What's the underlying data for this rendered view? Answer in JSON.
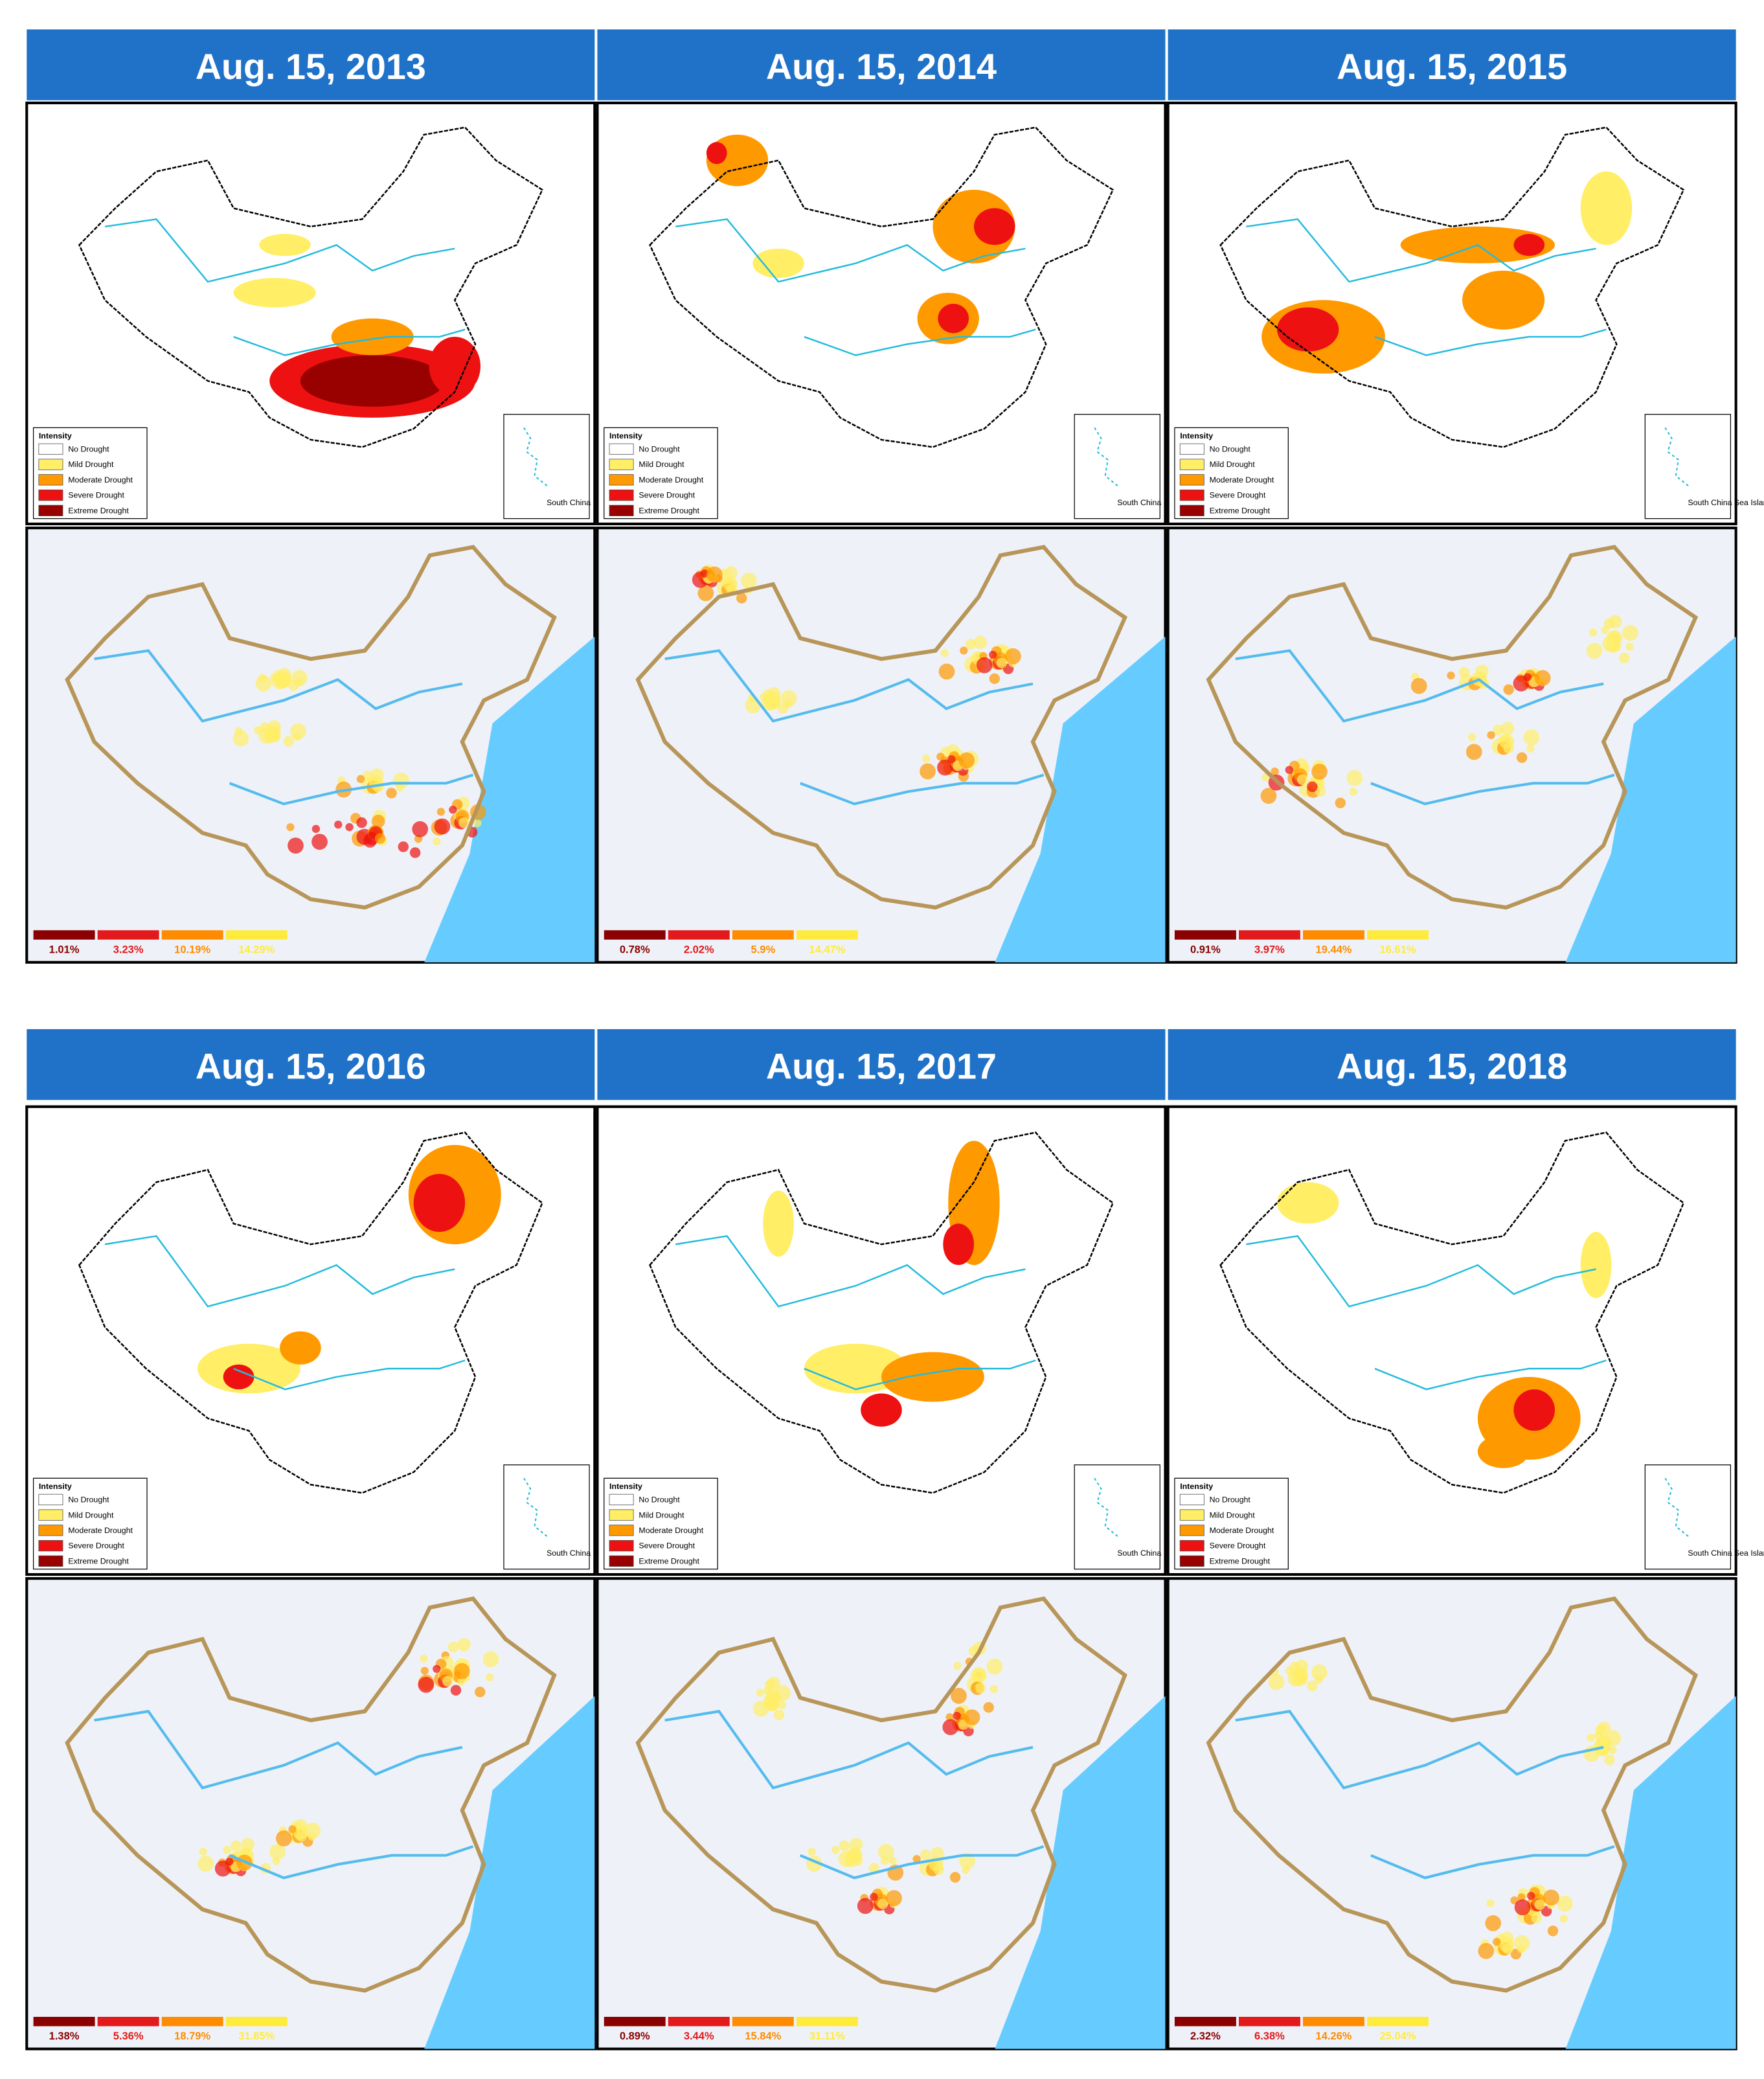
{
  "panels": [
    {
      "title": "Aug. 15, 2013",
      "percentages": [
        "1.01%",
        "3.23%",
        "10.19%",
        "14.29%"
      ]
    },
    {
      "title": "Aug. 15, 2014",
      "percentages": [
        "0.78%",
        "2.02%",
        "5.9%",
        "14.47%"
      ]
    },
    {
      "title": "Aug. 15, 2015",
      "percentages": [
        "0.91%",
        "3.97%",
        "19.44%",
        "16.61%"
      ]
    },
    {
      "title": "Aug. 15, 2016",
      "percentages": [
        "1.38%",
        "5.36%",
        "18.79%",
        "31.85%"
      ]
    },
    {
      "title": "Aug. 15, 2017",
      "percentages": [
        "0.89%",
        "3.44%",
        "15.84%",
        "31.11%"
      ]
    },
    {
      "title": "Aug. 15, 2018",
      "percentages": [
        "2.32%",
        "6.38%",
        "14.26%",
        "25.04%"
      ]
    }
  ],
  "legend": {
    "title": "Intensity",
    "items": [
      "No Drought",
      "Mild Drought",
      "Moderate Drought",
      "Severe Drought",
      "Extreme Drought"
    ]
  },
  "inset_label": "South China Sea Islands"
}
